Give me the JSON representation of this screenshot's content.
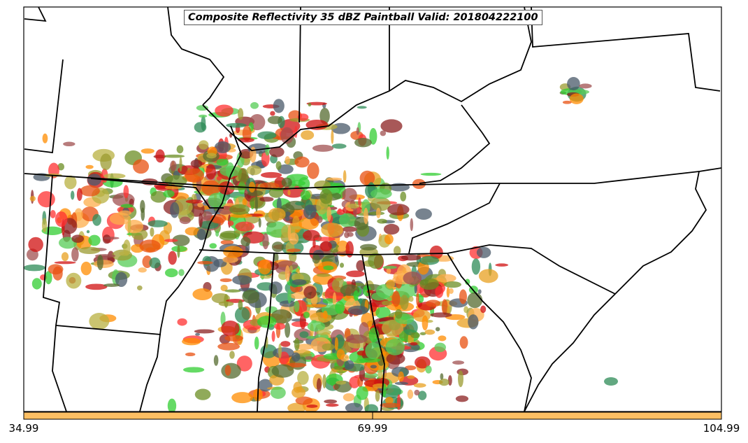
{
  "title": "Composite Reflectivity 35 dBZ Paintball Valid: 201804222100",
  "colorbar": {
    "color": "#fdbf63",
    "ticks": [
      "34.99",
      "69.99",
      "104.99"
    ],
    "range": [
      34.99,
      104.99
    ]
  },
  "member_colors": [
    "#ff8c00",
    "#e8a020",
    "#fdae4b",
    "#ff3030",
    "#d01010",
    "#8b2020",
    "#a05050",
    "#6b8e23",
    "#9b9b30",
    "#b8b040",
    "#32cd32",
    "#55cc55",
    "#2e8b57",
    "#556b2f",
    "#4a5a6a",
    "#e85010"
  ]
}
